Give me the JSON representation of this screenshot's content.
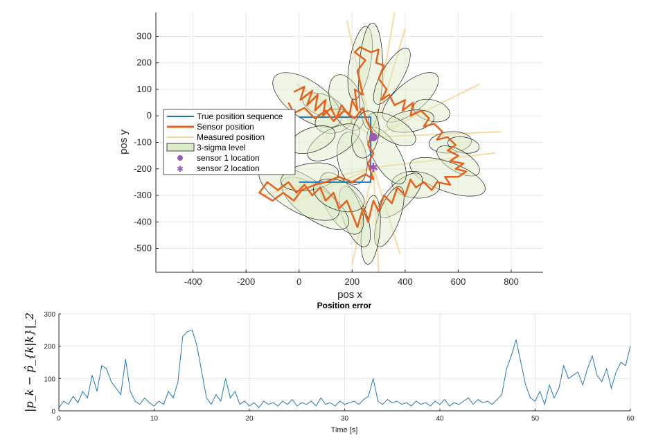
{
  "chart_data": [
    {
      "type": "line",
      "xlabel": "pos x",
      "ylabel": "pos y",
      "xlim": [
        -540,
        920
      ],
      "ylim": [
        -590,
        390
      ],
      "xticks": [
        -400,
        -200,
        0,
        200,
        400,
        600,
        800
      ],
      "yticks": [
        300,
        200,
        100,
        0,
        -100,
        -200,
        -300,
        -400,
        -500
      ],
      "grid": true,
      "legend_position": "left-center",
      "legend": [
        "True position sequence",
        "Sensor position",
        "Measured position",
        "3-sigma level",
        "sensor 1 location",
        "sensor 2 location"
      ],
      "colors": {
        "true": "#1f77b4",
        "sensor": "#e8601c",
        "measured": "#f5c97a",
        "ellipse_fill": "#dcebc8",
        "ellipse_edge": "#1a1a1a",
        "sensor_marker": "#9b59b6"
      },
      "true_path": [
        [
          0,
          -5
        ],
        [
          270,
          -5
        ],
        [
          270,
          -250
        ],
        [
          0,
          -250
        ]
      ],
      "sensor1_location": [
        280,
        -80
      ],
      "sensor2_location": [
        280,
        -195
      ],
      "ellipses": [
        {
          "cx": 90,
          "cy": 40,
          "rx": 80,
          "ry": 40,
          "angle": -20
        },
        {
          "cx": 30,
          "cy": 60,
          "rx": 150,
          "ry": 70,
          "angle": -35
        },
        {
          "cx": 130,
          "cy": -20,
          "rx": 70,
          "ry": 45,
          "angle": 10
        },
        {
          "cx": 180,
          "cy": 50,
          "rx": 110,
          "ry": 60,
          "angle": -70
        },
        {
          "cx": 230,
          "cy": 200,
          "rx": 140,
          "ry": 40,
          "angle": 80
        },
        {
          "cx": 270,
          "cy": 150,
          "rx": 200,
          "ry": 45,
          "angle": 88
        },
        {
          "cx": 350,
          "cy": 150,
          "rx": 120,
          "ry": 40,
          "angle": 60
        },
        {
          "cx": 420,
          "cy": 70,
          "rx": 130,
          "ry": 55,
          "angle": 40
        },
        {
          "cx": 500,
          "cy": 20,
          "rx": 70,
          "ry": 40,
          "angle": -15
        },
        {
          "cx": 420,
          "cy": -20,
          "rx": 90,
          "ry": 40,
          "angle": 10
        },
        {
          "cx": 570,
          "cy": -100,
          "rx": 80,
          "ry": 40,
          "angle": 5
        },
        {
          "cx": 620,
          "cy": -110,
          "rx": 60,
          "ry": 30,
          "angle": -10
        },
        {
          "cx": 600,
          "cy": -170,
          "rx": 90,
          "ry": 40,
          "angle": -30
        },
        {
          "cx": 560,
          "cy": -230,
          "rx": 150,
          "ry": 55,
          "angle": -20
        },
        {
          "cx": 440,
          "cy": -260,
          "rx": 90,
          "ry": 50,
          "angle": -5
        },
        {
          "cx": 380,
          "cy": -300,
          "rx": 110,
          "ry": 45,
          "angle": 45
        },
        {
          "cx": 340,
          "cy": -380,
          "rx": 120,
          "ry": 40,
          "angle": 70
        },
        {
          "cx": 270,
          "cy": -430,
          "rx": 130,
          "ry": 35,
          "angle": 85
        },
        {
          "cx": 210,
          "cy": -380,
          "rx": 120,
          "ry": 45,
          "angle": 110
        },
        {
          "cx": 160,
          "cy": -330,
          "rx": 130,
          "ry": 60,
          "angle": 120
        },
        {
          "cx": 60,
          "cy": -330,
          "rx": 150,
          "ry": 60,
          "angle": 145
        },
        {
          "cx": 0,
          "cy": -290,
          "rx": 170,
          "ry": 70,
          "angle": 150
        },
        {
          "cx": 40,
          "cy": -230,
          "rx": 110,
          "ry": 50,
          "angle": -170
        },
        {
          "cx": 150,
          "cy": -300,
          "rx": 100,
          "ry": 55,
          "angle": 160
        },
        {
          "cx": 200,
          "cy": -160,
          "rx": 100,
          "ry": 55,
          "angle": 100
        },
        {
          "cx": 130,
          "cy": -100,
          "rx": 110,
          "ry": 50,
          "angle": -150
        },
        {
          "cx": 50,
          "cy": -90,
          "rx": 90,
          "ry": 45,
          "angle": -160
        },
        {
          "cx": 330,
          "cy": -150,
          "rx": 120,
          "ry": 50,
          "angle": -60
        },
        {
          "cx": 350,
          "cy": -50,
          "rx": 100,
          "ry": 45,
          "angle": -30
        },
        {
          "cx": 250,
          "cy": -70,
          "rx": 90,
          "ry": 50,
          "angle": 80
        }
      ],
      "measured_lines": [
        [
          [
            280,
            -80
          ],
          [
            360,
            390
          ]
        ],
        [
          [
            280,
            -80
          ],
          [
            180,
            360
          ]
        ],
        [
          [
            280,
            -80
          ],
          [
            400,
            330
          ]
        ],
        [
          [
            280,
            -80
          ],
          [
            -10,
            120
          ]
        ],
        [
          [
            280,
            -80
          ],
          [
            760,
            -60
          ]
        ],
        [
          [
            280,
            -80
          ],
          [
            680,
            120
          ]
        ],
        [
          [
            280,
            -195
          ],
          [
            380,
            -520
          ]
        ],
        [
          [
            280,
            -195
          ],
          [
            200,
            -560
          ]
        ],
        [
          [
            280,
            -195
          ],
          [
            300,
            -590
          ]
        ],
        [
          [
            280,
            -195
          ],
          [
            -140,
            -300
          ]
        ],
        [
          [
            280,
            -195
          ],
          [
            740,
            -140
          ]
        ],
        [
          [
            280,
            -195
          ],
          [
            -30,
            -330
          ]
        ]
      ],
      "sensor_path": [
        [
          -20,
          90
        ],
        [
          20,
          110
        ],
        [
          5,
          60
        ],
        [
          50,
          95
        ],
        [
          30,
          40
        ],
        [
          70,
          80
        ],
        [
          60,
          20
        ],
        [
          100,
          60
        ],
        [
          90,
          0
        ],
        [
          120,
          30
        ],
        [
          140,
          -10
        ],
        [
          160,
          40
        ],
        [
          190,
          0
        ],
        [
          200,
          60
        ],
        [
          220,
          20
        ],
        [
          210,
          100
        ],
        [
          240,
          80
        ],
        [
          220,
          170
        ],
        [
          250,
          210
        ],
        [
          210,
          240
        ],
        [
          230,
          260
        ],
        [
          270,
          240
        ],
        [
          300,
          250
        ],
        [
          290,
          200
        ],
        [
          320,
          190
        ],
        [
          300,
          140
        ],
        [
          330,
          100
        ],
        [
          310,
          60
        ],
        [
          340,
          80
        ],
        [
          360,
          40
        ],
        [
          400,
          60
        ],
        [
          390,
          20
        ],
        [
          430,
          50
        ],
        [
          420,
          0
        ],
        [
          460,
          20
        ],
        [
          490,
          -10
        ],
        [
          470,
          -40
        ],
        [
          510,
          -30
        ],
        [
          540,
          -60
        ],
        [
          520,
          -90
        ],
        [
          560,
          -80
        ],
        [
          590,
          -110
        ],
        [
          560,
          -130
        ],
        [
          600,
          -150
        ],
        [
          570,
          -170
        ],
        [
          620,
          -180
        ],
        [
          590,
          -200
        ],
        [
          630,
          -210
        ],
        [
          600,
          -230
        ],
        [
          550,
          -230
        ],
        [
          570,
          -260
        ],
        [
          520,
          -250
        ],
        [
          500,
          -280
        ],
        [
          470,
          -250
        ],
        [
          440,
          -270
        ],
        [
          420,
          -240
        ],
        [
          400,
          -300
        ],
        [
          370,
          -270
        ],
        [
          350,
          -330
        ],
        [
          320,
          -300
        ],
        [
          300,
          -360
        ],
        [
          280,
          -320
        ],
        [
          260,
          -400
        ],
        [
          240,
          -350
        ],
        [
          220,
          -420
        ],
        [
          200,
          -370
        ],
        [
          180,
          -320
        ],
        [
          150,
          -350
        ],
        [
          130,
          -290
        ],
        [
          100,
          -320
        ],
        [
          80,
          -270
        ],
        [
          50,
          -300
        ],
        [
          20,
          -260
        ],
        [
          -10,
          -290
        ],
        [
          -40,
          -250
        ],
        [
          -80,
          -280
        ],
        [
          -120,
          -250
        ],
        [
          -150,
          -290
        ],
        [
          -100,
          -320
        ],
        [
          -60,
          -290
        ],
        [
          -20,
          -320
        ],
        [
          10,
          -280
        ],
        [
          60,
          -260
        ],
        [
          100,
          -250
        ],
        [
          150,
          -230
        ],
        [
          200,
          -250
        ],
        [
          250,
          -220
        ],
        [
          280,
          -240
        ],
        [
          260,
          -180
        ],
        [
          280,
          -140
        ],
        [
          260,
          -110
        ],
        [
          275,
          -60
        ],
        [
          255,
          -20
        ],
        [
          240,
          30
        ],
        [
          210,
          -10
        ],
        [
          170,
          20
        ],
        [
          130,
          -20
        ],
        [
          100,
          20
        ],
        [
          60,
          -10
        ],
        [
          20,
          30
        ],
        [
          -20,
          10
        ],
        [
          -40,
          50
        ]
      ]
    },
    {
      "type": "line",
      "title": "Position error",
      "xlabel": "Time [s]",
      "ylabel": "|p_k − p̂_{k|k}|_2",
      "xlim": [
        0,
        60
      ],
      "ylim": [
        0,
        300
      ],
      "xticks": [
        0,
        10,
        20,
        30,
        40,
        50,
        60
      ],
      "yticks": [
        0,
        100,
        200,
        300
      ],
      "grid": true,
      "color": "#1f77b4",
      "x": [
        0,
        0.5,
        1,
        1.5,
        2,
        2.5,
        3,
        3.5,
        4,
        4.5,
        5,
        5.5,
        6,
        6.5,
        7,
        7.5,
        8,
        8.5,
        9,
        9.5,
        10,
        10.5,
        11,
        11.5,
        12,
        12.5,
        13,
        13.5,
        14,
        14.5,
        15,
        15.5,
        16,
        16.5,
        17,
        17.5,
        18,
        18.5,
        19,
        19.5,
        20,
        20.5,
        21,
        21.5,
        22,
        22.5,
        23,
        23.5,
        24,
        24.5,
        25,
        25.5,
        26,
        26.5,
        27,
        27.5,
        28,
        28.5,
        29,
        29.5,
        30,
        30.5,
        31,
        31.5,
        32,
        32.5,
        33,
        33.5,
        34,
        34.5,
        35,
        35.5,
        36,
        36.5,
        37,
        37.5,
        38,
        38.5,
        39,
        39.5,
        40,
        40.5,
        41,
        41.5,
        42,
        42.5,
        43,
        43.5,
        44,
        44.5,
        45,
        45.5,
        46,
        46.5,
        47,
        47.5,
        48,
        48.5,
        49,
        49.5,
        50,
        50.5,
        51,
        51.5,
        52,
        52.5,
        53,
        53.5,
        54,
        54.5,
        55,
        55.5,
        56,
        56.5,
        57,
        57.5,
        58,
        58.5,
        59,
        59.5,
        60
      ],
      "values": [
        10,
        30,
        20,
        45,
        25,
        60,
        40,
        110,
        60,
        140,
        130,
        90,
        70,
        50,
        160,
        60,
        30,
        20,
        40,
        25,
        15,
        30,
        20,
        60,
        40,
        90,
        230,
        245,
        250,
        200,
        120,
        40,
        20,
        50,
        30,
        100,
        40,
        60,
        20,
        30,
        15,
        25,
        10,
        30,
        20,
        25,
        15,
        30,
        20,
        35,
        15,
        25,
        20,
        30,
        15,
        40,
        20,
        25,
        15,
        30,
        20,
        25,
        30,
        20,
        35,
        45,
        100,
        30,
        20,
        35,
        25,
        30,
        20,
        25,
        15,
        30,
        20,
        25,
        15,
        30,
        20,
        35,
        15,
        25,
        20,
        30,
        40,
        20,
        35,
        25,
        30,
        20,
        35,
        50,
        130,
        170,
        220,
        150,
        80,
        40,
        30,
        60,
        20,
        80,
        40,
        70,
        140,
        100,
        110,
        120,
        80,
        130,
        170,
        110,
        90,
        130,
        70,
        120,
        150,
        140,
        200
      ]
    }
  ],
  "legend_labels": {
    "true_pos": "True position sequence",
    "sensor_pos": "Sensor position",
    "measured": "Measured position",
    "sigma": "3-sigma level",
    "s1": "sensor 1 location",
    "s2": "sensor 2 location"
  },
  "top_axes": {
    "xlabel": "pos x",
    "ylabel": "pos y"
  },
  "bottom_axes": {
    "title": "Position error",
    "xlabel": "Time [s]",
    "ylabel": "|p_k − p̂_{k|k}|_2"
  }
}
